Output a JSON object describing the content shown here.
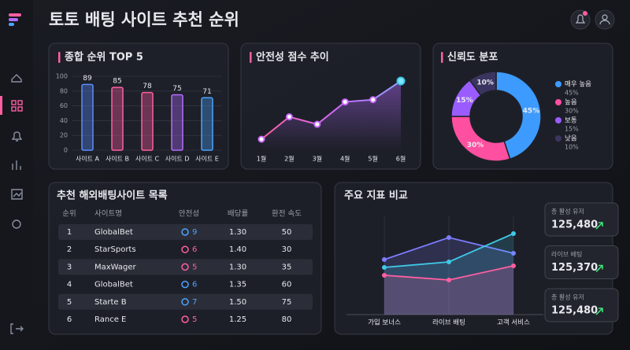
{
  "header": {
    "title": "토토 배팅 사이트 추천 순위"
  },
  "chart_data": [
    {
      "type": "bar",
      "title": "종합 순위 TOP 5",
      "categories": [
        "사이트 A",
        "사이트 B",
        "사이트 C",
        "사이트 D",
        "사이트 E"
      ],
      "values": [
        89,
        85,
        78,
        75,
        71
      ],
      "colors": [
        "#5b8dff",
        "#ff5fa2",
        "#ff5fa2",
        "#b46cff",
        "#4da3ff"
      ],
      "ylim": [
        0,
        100
      ],
      "yticks": [
        0,
        20,
        40,
        60,
        80,
        100
      ],
      "grid": true
    },
    {
      "type": "line",
      "title": "안전성 점수 추이",
      "categories": [
        "1월",
        "2월",
        "3월",
        "4월",
        "5월",
        "6월"
      ],
      "values": [
        20,
        50,
        40,
        70,
        73,
        98
      ],
      "color": "#c86cff"
    },
    {
      "type": "pie",
      "title": "신뢰도 분포",
      "donut": true,
      "categories": [
        "매우 높음",
        "높음",
        "보통",
        "낮음"
      ],
      "values": [
        45,
        30,
        15,
        10
      ],
      "value_labels": [
        "45%",
        "30%",
        "15%",
        "10%"
      ],
      "colors": [
        "#3d9bff",
        "#ff4fa0",
        "#9b5cff",
        "#3a3560"
      ]
    },
    {
      "type": "area",
      "title": "주요 지표 비교",
      "categories": [
        "가입 보너스",
        "라이브 배팅",
        "고객 서비스"
      ],
      "series": [
        {
          "color": "#7d7dff",
          "values": [
            70,
            98,
            78
          ]
        },
        {
          "color": "#3fc9e6",
          "values": [
            60,
            67,
            103
          ]
        },
        {
          "color": "#ff5fa2",
          "values": [
            50,
            44,
            62
          ]
        }
      ]
    }
  ],
  "table": {
    "title": "추천 해외배팅사이트 목록",
    "columns": [
      "순위",
      "사이트명",
      "안전성",
      "배당률",
      "환전 속도"
    ],
    "rows": [
      [
        "1",
        "GlobalBet",
        "9",
        "1.30",
        "50"
      ],
      [
        "2",
        "StarSports",
        "6",
        "1.40",
        "30"
      ],
      [
        "3",
        "MaxWager",
        "5",
        "1.30",
        "35"
      ],
      [
        "4",
        "GlobalBet",
        "6",
        "1.35",
        "60"
      ],
      [
        "5",
        "Starte B",
        "7",
        "1.50",
        "75"
      ],
      [
        "6",
        "Rance E",
        "5",
        "1.25",
        "80"
      ]
    ],
    "safety_colors": [
      "#4da3ff",
      "#ff5fa2",
      "#ff5fa2",
      "#4da3ff",
      "#4da3ff",
      "#ff5fa2"
    ]
  },
  "stats": [
    {
      "label": "총 활성 유저",
      "value": "125,480"
    },
    {
      "label": "라이브 배팅",
      "value": "125,370"
    },
    {
      "label": "총 활성 유저",
      "value": "125,480"
    }
  ]
}
